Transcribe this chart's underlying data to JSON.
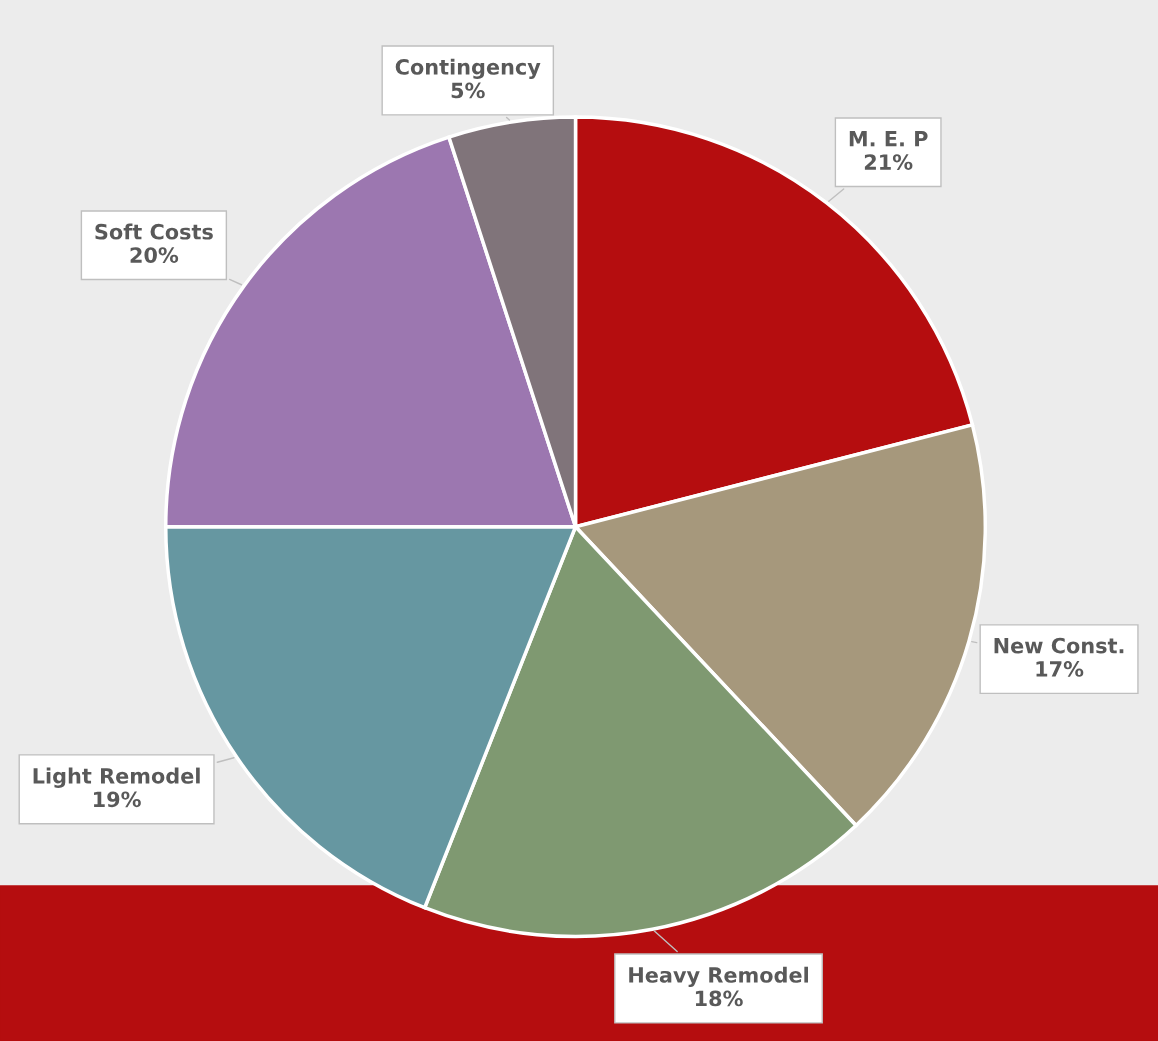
{
  "chart_data": {
    "type": "pie",
    "categories": [
      "M. E. P",
      "New Const.",
      "Heavy Remodel",
      "Light Remodel",
      "Soft Costs",
      "Contingency"
    ],
    "values": [
      21,
      17,
      18,
      19,
      20,
      5
    ],
    "value_labels": [
      "21%",
      "17%",
      "18%",
      "19%",
      "20%",
      "5%"
    ],
    "colors": [
      "#b50d0f",
      "#a6987c",
      "#7f9971",
      "#6697a1",
      "#9c77b0",
      "#80747a"
    ],
    "legend": false
  }
}
